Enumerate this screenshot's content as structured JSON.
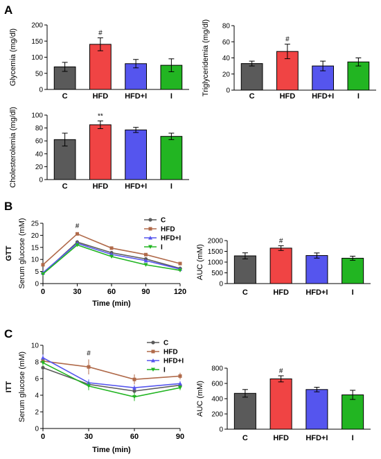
{
  "panels": [
    "A",
    "B",
    "C"
  ],
  "colors": {
    "C": "#5a5a5a",
    "HFD": "#f04444",
    "HFD+I": "#5555ee",
    "I": "#22b522",
    "HFD_line": "#b06a4a"
  },
  "chart_data": [
    {
      "type": "bar",
      "ylabel": "Glycemia (mg/dl)",
      "categories": [
        "C",
        "HFD",
        "HFD+I",
        "I"
      ],
      "values": [
        70,
        140,
        80,
        75
      ],
      "errors": [
        14,
        20,
        13,
        20
      ],
      "annotations": [
        "",
        "#",
        "",
        ""
      ],
      "ylim": [
        0,
        200
      ],
      "yticks": [
        0,
        50,
        100,
        150,
        200
      ]
    },
    {
      "type": "bar",
      "ylabel": "Triglyceridemia (mg/dl)",
      "categories": [
        "C",
        "HFD",
        "HFD+I",
        "I"
      ],
      "values": [
        33,
        48,
        30,
        35
      ],
      "errors": [
        3,
        9,
        6,
        5
      ],
      "annotations": [
        "",
        "#",
        "",
        ""
      ],
      "ylim": [
        0,
        80
      ],
      "yticks": [
        0,
        20,
        40,
        60,
        80
      ]
    },
    {
      "type": "bar",
      "ylabel": "Cholesterolemia (mg/dl)",
      "categories": [
        "C",
        "HFD",
        "HFD+I",
        "I"
      ],
      "values": [
        62,
        85,
        77,
        67
      ],
      "errors": [
        10,
        6,
        4,
        5
      ],
      "annotations": [
        "",
        "**",
        "",
        ""
      ],
      "ylim": [
        0,
        100
      ],
      "yticks": [
        0,
        20,
        40,
        60,
        80,
        100
      ]
    },
    {
      "type": "line",
      "side_label": "GTT",
      "ylabel": "Serum glucose (mM)",
      "xlabel": "Time (min)",
      "x": [
        0,
        30,
        60,
        90,
        120
      ],
      "xlim": [
        0,
        120
      ],
      "xticks": [
        0,
        30,
        60,
        90,
        120
      ],
      "ylim": [
        0,
        25
      ],
      "yticks": [
        0,
        5,
        10,
        15,
        20,
        25
      ],
      "legend": [
        "C",
        "HFD",
        "HFD+I",
        "I"
      ],
      "series": [
        {
          "name": "C",
          "values": [
            4.2,
            17.2,
            12.8,
            10.2,
            6.3
          ],
          "errors": [
            0.3,
            0.8,
            0.7,
            0.7,
            0.4
          ]
        },
        {
          "name": "HFD",
          "values": [
            7.8,
            20.6,
            14.7,
            12.0,
            8.3
          ],
          "errors": [
            0.4,
            0.6,
            0.5,
            0.5,
            0.4
          ]
        },
        {
          "name": "HFD+I",
          "values": [
            4.5,
            16.7,
            12.1,
            9.5,
            6.0
          ],
          "errors": [
            0.3,
            0.7,
            0.6,
            0.6,
            0.4
          ]
        },
        {
          "name": "I",
          "values": [
            4.0,
            16.0,
            11.2,
            7.8,
            5.5
          ],
          "errors": [
            0.3,
            0.6,
            0.5,
            0.5,
            0.3
          ]
        }
      ],
      "annotations": [
        {
          "x": 30,
          "text": "#"
        }
      ]
    },
    {
      "type": "bar",
      "ylabel": "AUC (mM)",
      "categories": [
        "C",
        "HFD",
        "HFD+I",
        "I"
      ],
      "values": [
        1290,
        1650,
        1305,
        1180
      ],
      "errors": [
        140,
        110,
        120,
        95
      ],
      "annotations": [
        "",
        "#",
        "",
        ""
      ],
      "ylim": [
        0,
        2000
      ],
      "yticks": [
        0,
        500,
        1000,
        1500,
        2000
      ]
    },
    {
      "type": "line",
      "side_label": "ITT",
      "ylabel": "Serum glucose (mM)",
      "xlabel": "Time (min)",
      "x": [
        0,
        30,
        60,
        90
      ],
      "xlim": [
        0,
        90
      ],
      "xticks": [
        0,
        30,
        60,
        90
      ],
      "ylim": [
        0,
        10
      ],
      "yticks": [
        0,
        2,
        4,
        6,
        8,
        10
      ],
      "legend": [
        "C",
        "HFD",
        "HFD+I",
        "I"
      ],
      "series": [
        {
          "name": "C",
          "values": [
            7.3,
            5.3,
            4.5,
            5.2
          ],
          "errors": [
            0.3,
            0.4,
            0.3,
            0.3
          ]
        },
        {
          "name": "HFD",
          "values": [
            8.1,
            7.4,
            5.9,
            6.3
          ],
          "errors": [
            0.4,
            0.9,
            0.6,
            0.4
          ]
        },
        {
          "name": "HFD+I",
          "values": [
            8.5,
            5.5,
            4.9,
            5.4
          ],
          "errors": [
            0.4,
            0.4,
            0.3,
            0.3
          ]
        },
        {
          "name": "I",
          "values": [
            7.9,
            5.1,
            3.8,
            4.9
          ],
          "errors": [
            0.4,
            0.5,
            0.5,
            0.3
          ]
        }
      ],
      "annotations": [
        {
          "x": 30,
          "text": "#"
        }
      ]
    },
    {
      "type": "bar",
      "ylabel": "AUC (mM)",
      "categories": [
        "C",
        "HFD",
        "HFD+I",
        "I"
      ],
      "values": [
        470,
        660,
        520,
        450
      ],
      "errors": [
        50,
        40,
        30,
        60
      ],
      "annotations": [
        "",
        "#",
        "",
        ""
      ],
      "ylim": [
        0,
        800
      ],
      "yticks": [
        0,
        200,
        400,
        600,
        800
      ]
    }
  ]
}
